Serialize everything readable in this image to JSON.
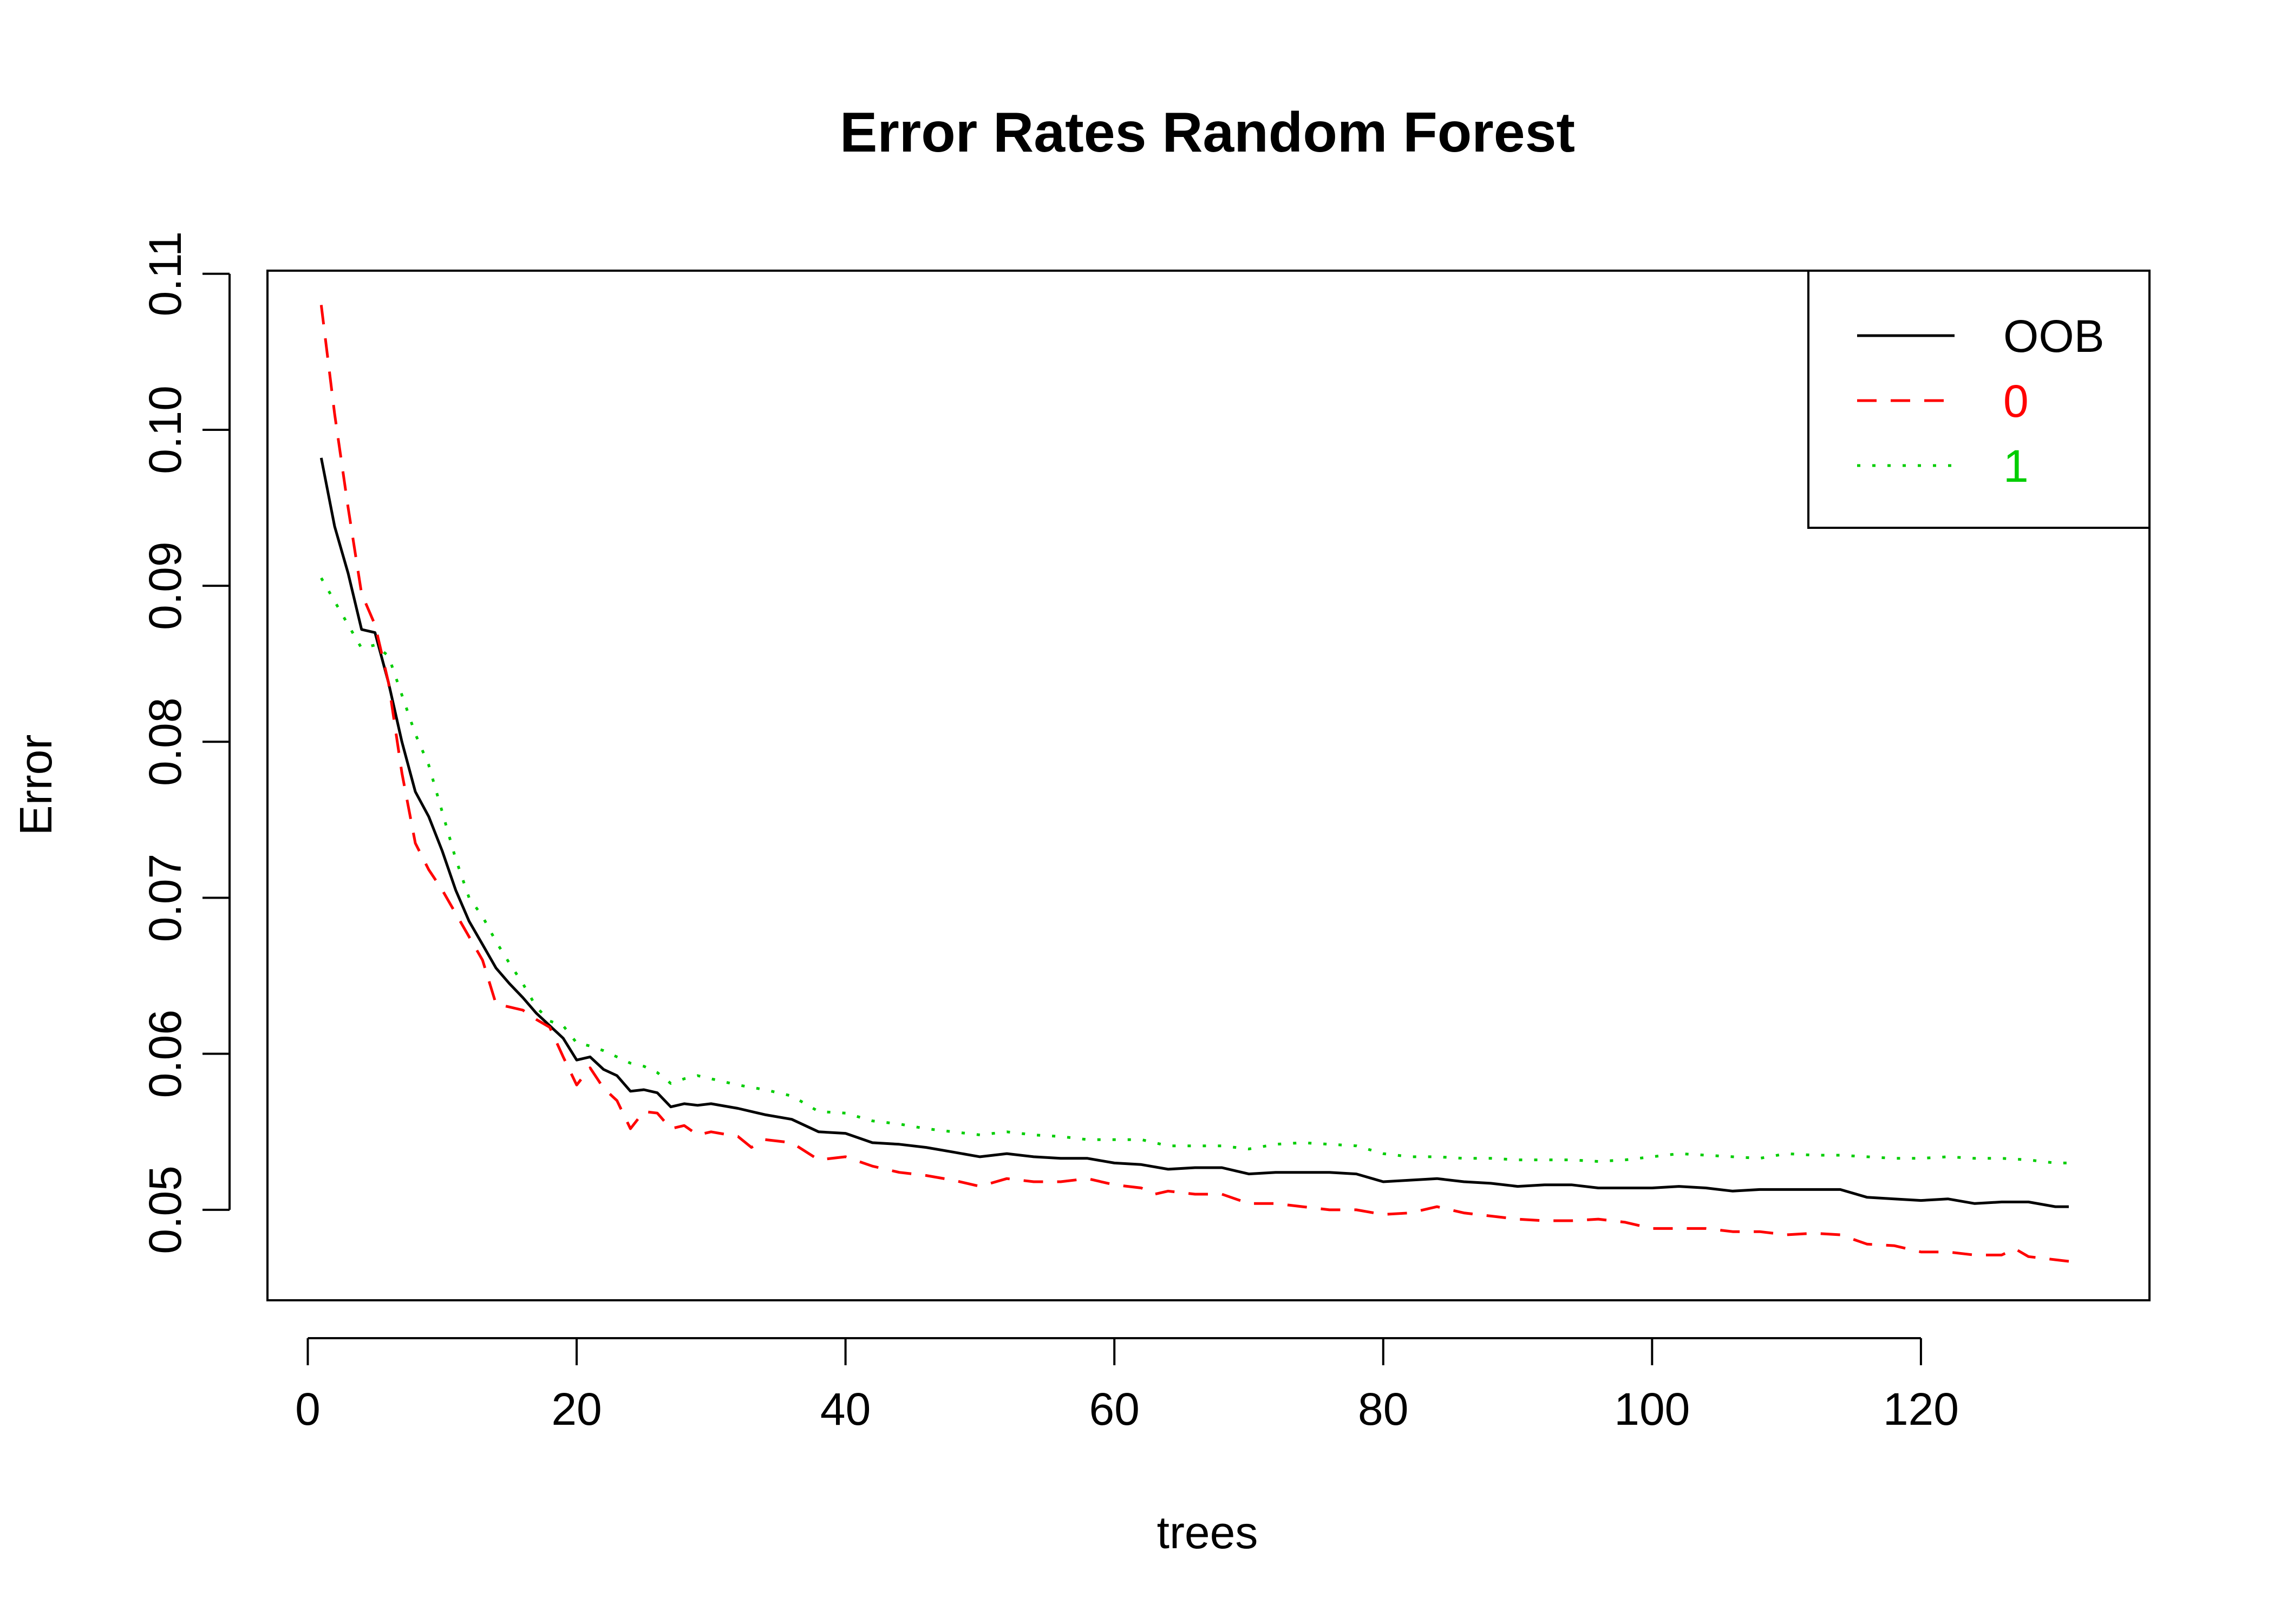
{
  "chart_data": {
    "type": "line",
    "title": "Error Rates Random Forest",
    "xlabel": "trees",
    "ylabel": "Error",
    "xlim": [
      -3,
      137
    ],
    "ylim": [
      0.0442,
      0.1102
    ],
    "x_ticks": [
      0,
      20,
      40,
      60,
      80,
      100,
      120
    ],
    "x_tick_labels": [
      "0",
      "20",
      "40",
      "60",
      "80",
      "100",
      "120"
    ],
    "y_ticks": [
      0.05,
      0.06,
      0.07,
      0.08,
      0.09,
      0.1,
      0.11
    ],
    "y_tick_labels": [
      "0.05",
      "0.06",
      "0.07",
      "0.08",
      "0.09",
      "0.10",
      "0.11"
    ],
    "grid": false,
    "legend_position": "top-right",
    "series": [
      {
        "name": "OOB",
        "color": "#000000",
        "dash": "solid",
        "points": [
          [
            1,
            0.0982
          ],
          [
            2,
            0.0938
          ],
          [
            3,
            0.0908
          ],
          [
            4,
            0.0872
          ],
          [
            5,
            0.087
          ],
          [
            6,
            0.0838
          ],
          [
            7,
            0.08
          ],
          [
            8,
            0.0768
          ],
          [
            9,
            0.0752
          ],
          [
            10,
            0.073
          ],
          [
            11,
            0.0705
          ],
          [
            12,
            0.0685
          ],
          [
            13,
            0.067
          ],
          [
            14,
            0.0655
          ],
          [
            15,
            0.0645
          ],
          [
            16,
            0.0636
          ],
          [
            17,
            0.0626
          ],
          [
            18,
            0.0618
          ],
          [
            19,
            0.061
          ],
          [
            20,
            0.0596
          ],
          [
            21,
            0.0598
          ],
          [
            22,
            0.059
          ],
          [
            23,
            0.0586
          ],
          [
            24,
            0.0576
          ],
          [
            25,
            0.0577
          ],
          [
            26,
            0.0575
          ],
          [
            27,
            0.0566
          ],
          [
            28,
            0.0568
          ],
          [
            29,
            0.0567
          ],
          [
            30,
            0.0568
          ],
          [
            32,
            0.0565
          ],
          [
            34,
            0.0561
          ],
          [
            36,
            0.0558
          ],
          [
            38,
            0.055
          ],
          [
            40,
            0.0549
          ],
          [
            42,
            0.0543
          ],
          [
            44,
            0.0542
          ],
          [
            46,
            0.054
          ],
          [
            48,
            0.0537
          ],
          [
            50,
            0.0534
          ],
          [
            52,
            0.0536
          ],
          [
            54,
            0.0534
          ],
          [
            56,
            0.0533
          ],
          [
            58,
            0.0533
          ],
          [
            60,
            0.053
          ],
          [
            62,
            0.0529
          ],
          [
            64,
            0.0526
          ],
          [
            66,
            0.0527
          ],
          [
            68,
            0.0527
          ],
          [
            70,
            0.0523
          ],
          [
            72,
            0.0524
          ],
          [
            74,
            0.0524
          ],
          [
            76,
            0.0524
          ],
          [
            78,
            0.0523
          ],
          [
            80,
            0.0518
          ],
          [
            82,
            0.0519
          ],
          [
            84,
            0.052
          ],
          [
            86,
            0.0518
          ],
          [
            88,
            0.0517
          ],
          [
            90,
            0.0515
          ],
          [
            92,
            0.0516
          ],
          [
            94,
            0.0516
          ],
          [
            96,
            0.0514
          ],
          [
            98,
            0.0514
          ],
          [
            100,
            0.0514
          ],
          [
            102,
            0.0515
          ],
          [
            104,
            0.0514
          ],
          [
            106,
            0.0512
          ],
          [
            108,
            0.0513
          ],
          [
            110,
            0.0513
          ],
          [
            112,
            0.0513
          ],
          [
            114,
            0.0513
          ],
          [
            116,
            0.0508
          ],
          [
            118,
            0.0507
          ],
          [
            120,
            0.0506
          ],
          [
            122,
            0.0507
          ],
          [
            124,
            0.0504
          ],
          [
            126,
            0.0505
          ],
          [
            128,
            0.0505
          ],
          [
            130,
            0.0502
          ],
          [
            131,
            0.0502
          ]
        ]
      },
      {
        "name": "0",
        "color": "#ff0000",
        "dash": "dashed",
        "points": [
          [
            1,
            0.108
          ],
          [
            2,
            0.101
          ],
          [
            3,
            0.095
          ],
          [
            4,
            0.0895
          ],
          [
            5,
            0.0875
          ],
          [
            6,
            0.0838
          ],
          [
            7,
            0.078
          ],
          [
            8,
            0.0735
          ],
          [
            9,
            0.0718
          ],
          [
            10,
            0.0705
          ],
          [
            11,
            0.069
          ],
          [
            12,
            0.0675
          ],
          [
            13,
            0.066
          ],
          [
            14,
            0.0632
          ],
          [
            15,
            0.063
          ],
          [
            16,
            0.0628
          ],
          [
            17,
            0.0622
          ],
          [
            18,
            0.0617
          ],
          [
            19,
            0.0598
          ],
          [
            20,
            0.058
          ],
          [
            21,
            0.0591
          ],
          [
            22,
            0.0578
          ],
          [
            23,
            0.057
          ],
          [
            24,
            0.0552
          ],
          [
            25,
            0.0563
          ],
          [
            26,
            0.0562
          ],
          [
            27,
            0.0552
          ],
          [
            28,
            0.0554
          ],
          [
            29,
            0.0548
          ],
          [
            30,
            0.055
          ],
          [
            32,
            0.0547
          ],
          [
            33,
            0.054
          ],
          [
            34,
            0.0545
          ],
          [
            36,
            0.0543
          ],
          [
            38,
            0.0532
          ],
          [
            40,
            0.0534
          ],
          [
            42,
            0.0528
          ],
          [
            44,
            0.0524
          ],
          [
            46,
            0.0522
          ],
          [
            48,
            0.0519
          ],
          [
            50,
            0.0515
          ],
          [
            52,
            0.052
          ],
          [
            54,
            0.0518
          ],
          [
            56,
            0.0518
          ],
          [
            58,
            0.052
          ],
          [
            60,
            0.0516
          ],
          [
            62,
            0.0514
          ],
          [
            63,
            0.051
          ],
          [
            64,
            0.0512
          ],
          [
            66,
            0.051
          ],
          [
            68,
            0.051
          ],
          [
            70,
            0.0504
          ],
          [
            72,
            0.0504
          ],
          [
            74,
            0.0502
          ],
          [
            76,
            0.05
          ],
          [
            78,
            0.05
          ],
          [
            80,
            0.0497
          ],
          [
            82,
            0.0498
          ],
          [
            84,
            0.0502
          ],
          [
            86,
            0.0498
          ],
          [
            88,
            0.0496
          ],
          [
            90,
            0.0494
          ],
          [
            92,
            0.0493
          ],
          [
            94,
            0.0493
          ],
          [
            96,
            0.0494
          ],
          [
            98,
            0.0492
          ],
          [
            100,
            0.0488
          ],
          [
            102,
            0.0488
          ],
          [
            104,
            0.0488
          ],
          [
            106,
            0.0486
          ],
          [
            108,
            0.0486
          ],
          [
            110,
            0.0484
          ],
          [
            112,
            0.0485
          ],
          [
            114,
            0.0484
          ],
          [
            116,
            0.0478
          ],
          [
            118,
            0.0477
          ],
          [
            120,
            0.0473
          ],
          [
            122,
            0.0473
          ],
          [
            124,
            0.0471
          ],
          [
            126,
            0.0471
          ],
          [
            127,
            0.0475
          ],
          [
            128,
            0.047
          ],
          [
            130,
            0.0468
          ],
          [
            131,
            0.0467
          ]
        ]
      },
      {
        "name": "1",
        "color": "#00cd00",
        "dash": "dotted",
        "points": [
          [
            1,
            0.0905
          ],
          [
            2,
            0.089
          ],
          [
            3,
            0.0875
          ],
          [
            4,
            0.086
          ],
          [
            5,
            0.0862
          ],
          [
            6,
            0.0855
          ],
          [
            7,
            0.083
          ],
          [
            8,
            0.0805
          ],
          [
            9,
            0.0785
          ],
          [
            10,
            0.0755
          ],
          [
            11,
            0.0725
          ],
          [
            12,
            0.07
          ],
          [
            13,
            0.0688
          ],
          [
            14,
            0.0672
          ],
          [
            15,
            0.0658
          ],
          [
            16,
            0.0645
          ],
          [
            17,
            0.063
          ],
          [
            18,
            0.0621
          ],
          [
            19,
            0.0618
          ],
          [
            20,
            0.0607
          ],
          [
            21,
            0.0605
          ],
          [
            22,
            0.0602
          ],
          [
            23,
            0.0598
          ],
          [
            24,
            0.0594
          ],
          [
            25,
            0.0592
          ],
          [
            26,
            0.0588
          ],
          [
            27,
            0.0581
          ],
          [
            28,
            0.0584
          ],
          [
            29,
            0.0586
          ],
          [
            30,
            0.0584
          ],
          [
            32,
            0.058
          ],
          [
            34,
            0.0577
          ],
          [
            36,
            0.0573
          ],
          [
            38,
            0.0563
          ],
          [
            40,
            0.0562
          ],
          [
            42,
            0.0557
          ],
          [
            44,
            0.0555
          ],
          [
            46,
            0.0552
          ],
          [
            48,
            0.055
          ],
          [
            50,
            0.0548
          ],
          [
            52,
            0.055
          ],
          [
            54,
            0.0548
          ],
          [
            56,
            0.0547
          ],
          [
            58,
            0.0545
          ],
          [
            60,
            0.0545
          ],
          [
            62,
            0.0545
          ],
          [
            64,
            0.0541
          ],
          [
            66,
            0.0541
          ],
          [
            68,
            0.0541
          ],
          [
            70,
            0.0539
          ],
          [
            72,
            0.0542
          ],
          [
            74,
            0.0543
          ],
          [
            76,
            0.0542
          ],
          [
            78,
            0.0541
          ],
          [
            80,
            0.0536
          ],
          [
            82,
            0.0534
          ],
          [
            84,
            0.0534
          ],
          [
            86,
            0.0533
          ],
          [
            88,
            0.0533
          ],
          [
            90,
            0.0532
          ],
          [
            92,
            0.0532
          ],
          [
            94,
            0.0532
          ],
          [
            96,
            0.0531
          ],
          [
            98,
            0.0532
          ],
          [
            100,
            0.0534
          ],
          [
            102,
            0.0536
          ],
          [
            104,
            0.0535
          ],
          [
            106,
            0.0534
          ],
          [
            108,
            0.0533
          ],
          [
            110,
            0.0536
          ],
          [
            112,
            0.0535
          ],
          [
            114,
            0.0535
          ],
          [
            116,
            0.0534
          ],
          [
            118,
            0.0533
          ],
          [
            120,
            0.0533
          ],
          [
            122,
            0.0534
          ],
          [
            124,
            0.0533
          ],
          [
            126,
            0.0533
          ],
          [
            128,
            0.0532
          ],
          [
            130,
            0.053
          ],
          [
            131,
            0.053
          ]
        ]
      }
    ]
  }
}
